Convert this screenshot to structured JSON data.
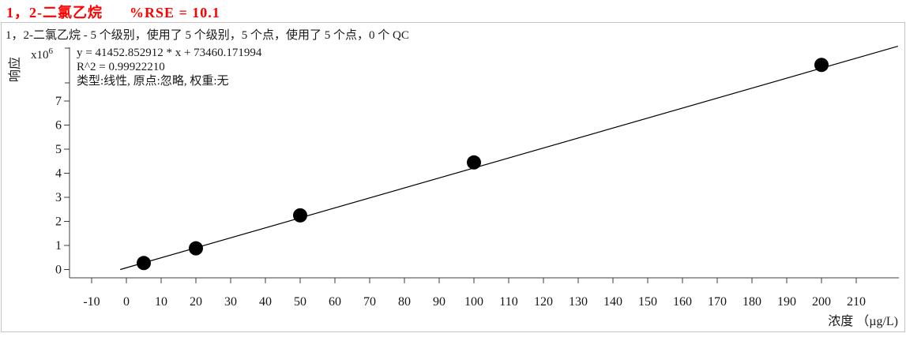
{
  "header": {
    "title_compound": "1，2-二氯乙烷",
    "title_rse": "%RSE = 10.1"
  },
  "info_line": "1，2-二氯乙烷 - 5 个级别，使用了 5 个级别，5 个点，使用了 5 个点，0 个 QC",
  "equation": {
    "line1": "y = 41452.852912 * x  + 73460.171994",
    "line2": "R^2 = 0.99922210",
    "line3": "类型:线性, 原点:忽略, 权重:无"
  },
  "chart_data": {
    "type": "scatter",
    "title": "1，2-二氯乙烷  %RSE = 10.1",
    "xlabel": "浓度 （µg/L)",
    "ylabel": "响应",
    "y_multiplier": {
      "base": "x10",
      "exponent": "6"
    },
    "x_ticks": [
      -10,
      0,
      10,
      20,
      30,
      40,
      50,
      60,
      70,
      80,
      90,
      100,
      110,
      120,
      130,
      140,
      150,
      160,
      170,
      180,
      190,
      200,
      210
    ],
    "y_ticks": [
      0,
      1,
      2,
      3,
      4,
      5,
      6,
      7
    ],
    "xlim": [
      -16,
      222
    ],
    "ylim_response_e6": [
      -0.35,
      9.25
    ],
    "grid": false,
    "legend": "none",
    "fit": {
      "type": "linear",
      "slope": 41452.852912,
      "intercept": 73460.171994,
      "r_squared": 0.9992221,
      "origin_handling": "忽略",
      "weight": "无",
      "line_clip_min_response": 0
    },
    "points": [
      {
        "conc_ug_L": 5,
        "response_e6": 0.27
      },
      {
        "conc_ug_L": 20,
        "response_e6": 0.88
      },
      {
        "conc_ug_L": 50,
        "response_e6": 2.25
      },
      {
        "conc_ug_L": 100,
        "response_e6": 4.45
      },
      {
        "conc_ug_L": 200,
        "response_e6": 8.5
      }
    ]
  },
  "colors": {
    "title_red": "#ff0000",
    "axis": "#3c3c3c",
    "tick_label": "#161616",
    "curve": "#000000",
    "point": "#000000",
    "frame_border": "#c4c4c4",
    "background": "#ffffff"
  }
}
